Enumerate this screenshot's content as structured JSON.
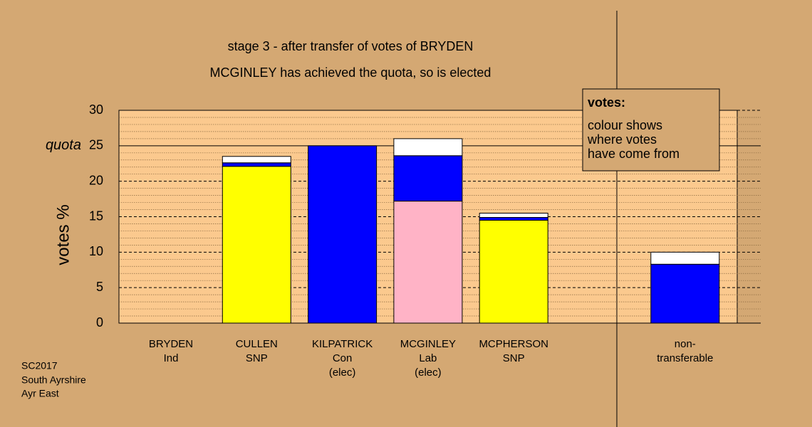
{
  "chart_data": {
    "type": "stacked-bar",
    "title": "stage 3 - after transfer of votes of BRYDEN",
    "subtitle": "MCGINLEY has achieved the quota, so is elected",
    "ylabel": "votes %",
    "categories": [
      [
        "BRYDEN",
        "Ind"
      ],
      [
        "CULLEN",
        "SNP"
      ],
      [
        "KILPATRICK",
        "Con",
        "(elec)"
      ],
      [
        "MCGINLEY",
        "Lab",
        "(elec)"
      ],
      [
        "MCPHERSON",
        "SNP"
      ],
      null,
      [
        "non-",
        "transferable"
      ]
    ],
    "series": [
      {
        "color": "#ffff00",
        "values": [
          0,
          22.1,
          0,
          0,
          14.5,
          null,
          0
        ]
      },
      {
        "color": "#ffb3c6",
        "values": [
          0,
          0,
          0,
          17.2,
          0,
          null,
          0
        ]
      },
      {
        "color": "#0000ff",
        "values": [
          0,
          0.5,
          25,
          6.4,
          0.4,
          null,
          8.3
        ]
      },
      {
        "color": "#ffffff",
        "values": [
          0,
          0.9,
          0,
          2.4,
          0.6,
          null,
          1.7
        ]
      }
    ],
    "ylim": [
      0,
      30
    ],
    "yticks": [
      0,
      5,
      10,
      15,
      20,
      25,
      30
    ],
    "minor_yticks": [
      1,
      2,
      3,
      4,
      6,
      7,
      8,
      9,
      11,
      12,
      13,
      14,
      16,
      17,
      18,
      19,
      21,
      22,
      23,
      24,
      26,
      27,
      28,
      29
    ],
    "grid": true,
    "quota": {
      "value": 25,
      "label": "quota"
    },
    "legend": {
      "title": "votes:",
      "lines": [
        "colour shows",
        "where votes",
        "have come from"
      ]
    },
    "footnote": [
      "SC2017",
      "South Ayrshire",
      "Ayr East"
    ]
  }
}
